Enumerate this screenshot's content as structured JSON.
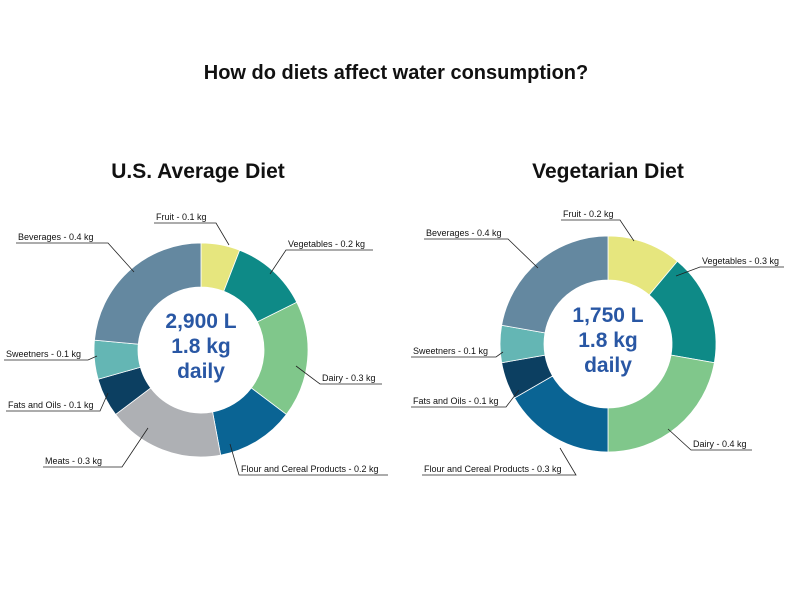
{
  "title": "How do diets affect water consumption?",
  "chart_data": [
    {
      "type": "pie",
      "donut": true,
      "title": "U.S. Average Diet",
      "center_text": [
        "2,900 L",
        "1.8 kg",
        "daily"
      ],
      "slices": [
        {
          "label": "Fruit - 0.1 kg",
          "category": "Fruit",
          "value": 0.1,
          "color": "#e6e67e"
        },
        {
          "label": "Vegetables - 0.2 kg",
          "category": "Vegetables",
          "value": 0.2,
          "color": "#0e8a87"
        },
        {
          "label": "Dairy - 0.3 kg",
          "category": "Dairy",
          "value": 0.3,
          "color": "#80c78b"
        },
        {
          "label": "Flour and Cereal Products - 0.2 kg",
          "category": "Flour and Cereal Products",
          "value": 0.2,
          "color": "#0a6494"
        },
        {
          "label": "Meats - 0.3 kg",
          "category": "Meats",
          "value": 0.3,
          "color": "#aeb0b4"
        },
        {
          "label": "Fats and Oils - 0.1 kg",
          "category": "Fats and Oils",
          "value": 0.1,
          "color": "#0c3f61"
        },
        {
          "label": "Sweetners - 0.1 kg",
          "category": "Sweetners",
          "value": 0.1,
          "color": "#64b6b4"
        },
        {
          "label": "Beverages - 0.4 kg",
          "category": "Beverages",
          "value": 0.4,
          "color": "#6488a0"
        }
      ]
    },
    {
      "type": "pie",
      "donut": true,
      "title": "Vegetarian Diet",
      "center_text": [
        "1,750 L",
        "1.8 kg",
        "daily"
      ],
      "slices": [
        {
          "label": "Fruit - 0.2 kg",
          "category": "Fruit",
          "value": 0.2,
          "color": "#e6e67e"
        },
        {
          "label": "Vegetables - 0.3 kg",
          "category": "Vegetables",
          "value": 0.3,
          "color": "#0e8a87"
        },
        {
          "label": "Dairy - 0.4 kg",
          "category": "Dairy",
          "value": 0.4,
          "color": "#80c78b"
        },
        {
          "label": "Flour and Cereal Products - 0.3 kg",
          "category": "Flour and Cereal Products",
          "value": 0.3,
          "color": "#0a6494"
        },
        {
          "label": "Fats and Oils - 0.1 kg",
          "category": "Fats and Oils",
          "value": 0.1,
          "color": "#0c3f61"
        },
        {
          "label": "Sweetners - 0.1 kg",
          "category": "Sweetners",
          "value": 0.1,
          "color": "#64b6b4"
        },
        {
          "label": "Beverages - 0.4 kg",
          "category": "Beverages",
          "value": 0.4,
          "color": "#6488a0"
        }
      ]
    }
  ]
}
